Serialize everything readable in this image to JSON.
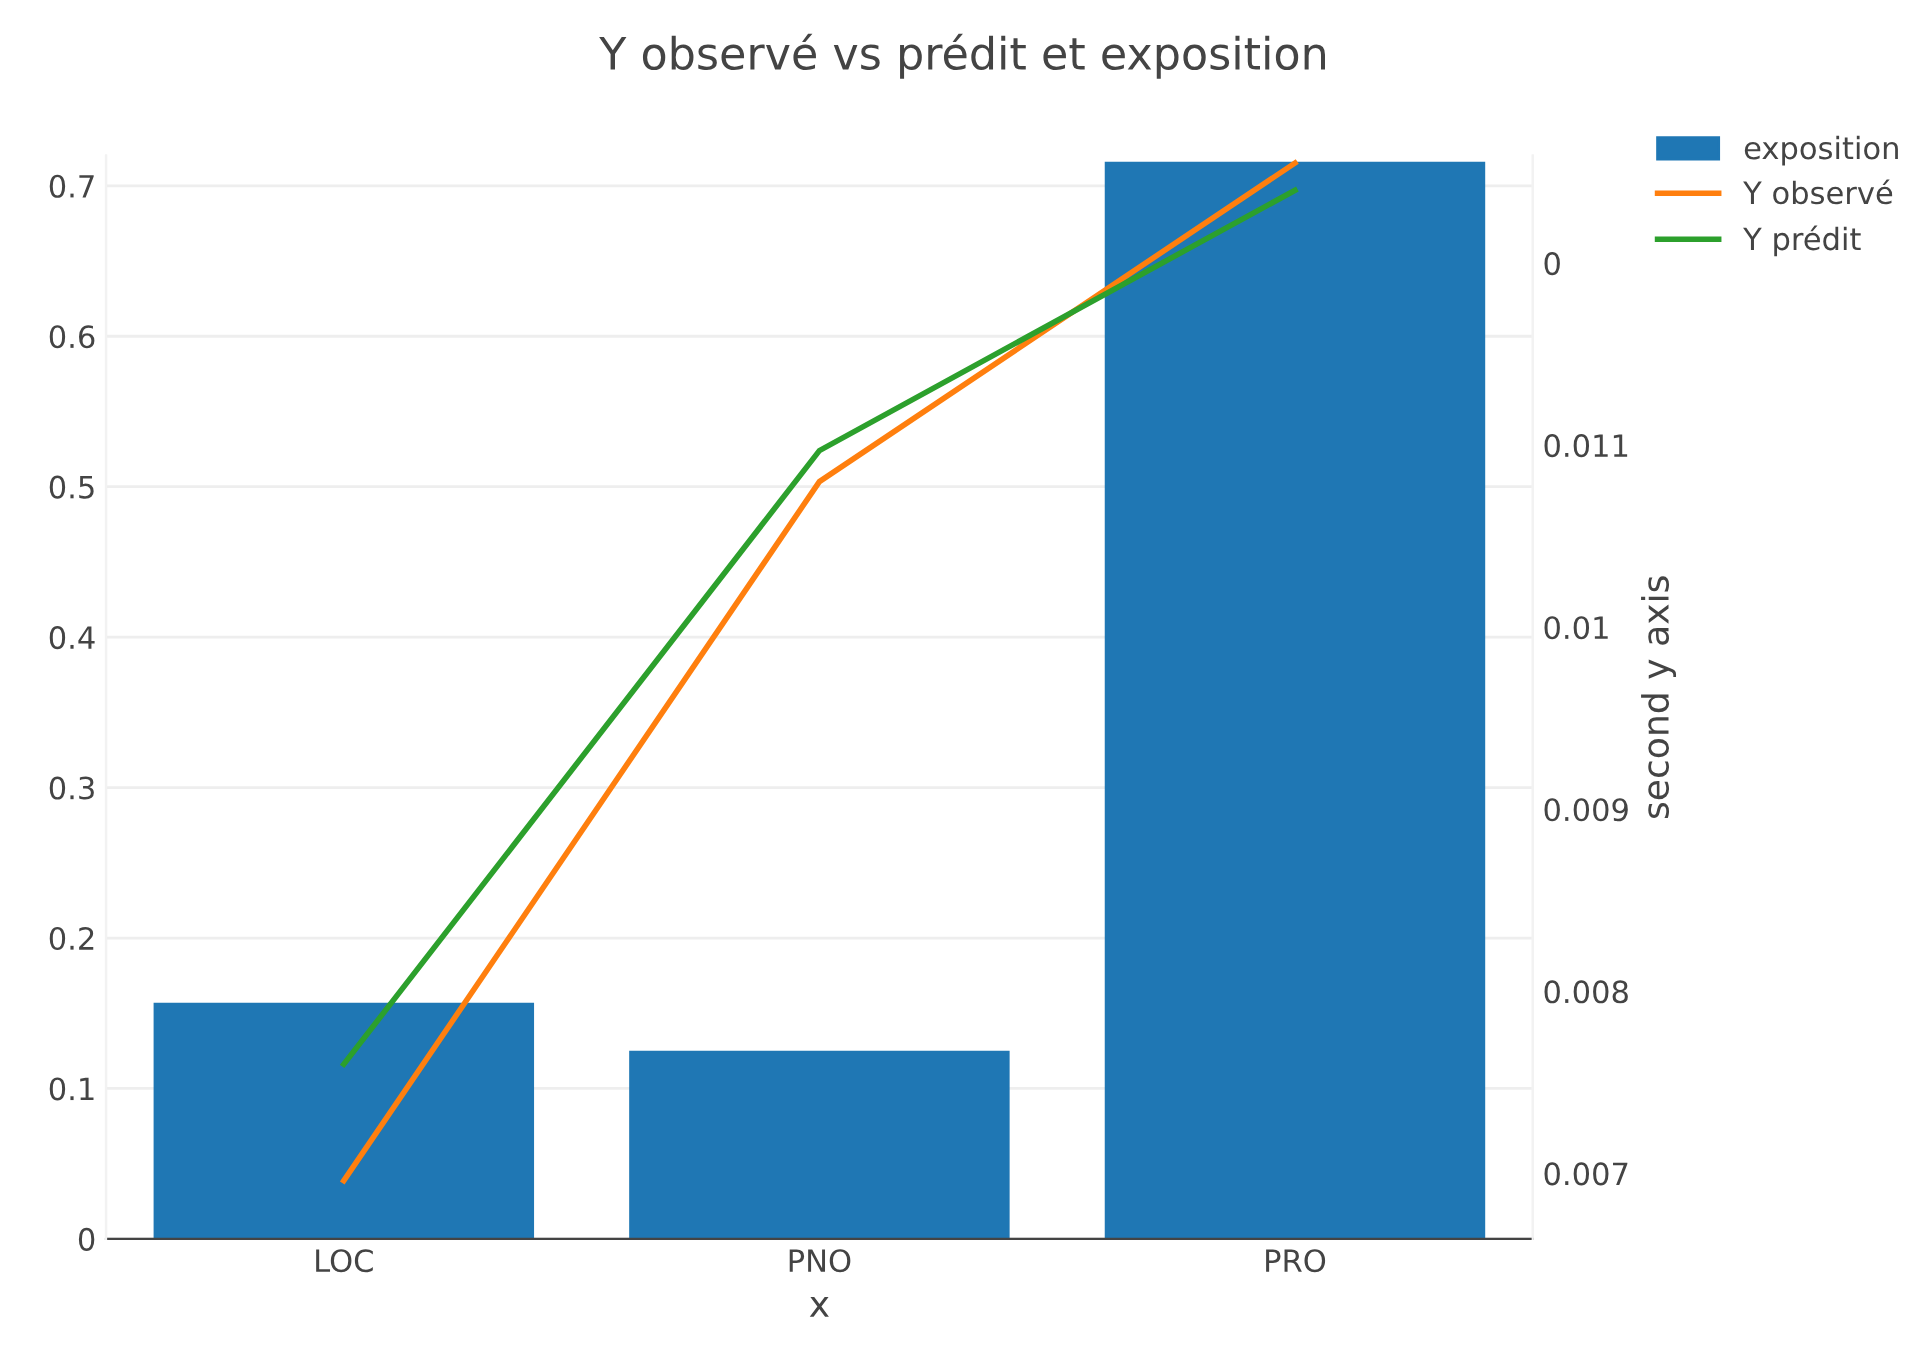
{
  "chart_data": {
    "type": "bar",
    "title": "Y observé vs prédit et exposition",
    "xlabel": "x",
    "y2label": "second y axis",
    "categories": [
      "LOC",
      "PNO",
      "PRO"
    ],
    "series": [
      {
        "name": "exposition",
        "color": "#1f77b4",
        "values": [
          0.157,
          0.125,
          0.716
        ]
      },
      {
        "name": "Y observé",
        "type": "line",
        "axis": "y2",
        "color": "#ff7f0e",
        "values": [
          0.00696,
          0.0108,
          0.01255
        ]
      },
      {
        "name": "Y prédit",
        "type": "line",
        "axis": "y2",
        "color": "#2ca02c",
        "values": [
          0.0076,
          0.01097,
          0.0124
        ]
      }
    ],
    "ylim": [
      0,
      0.72
    ],
    "yticks": [
      0,
      0.1,
      0.2,
      0.3,
      0.4,
      0.5,
      0.6,
      0.7
    ],
    "y2lim": [
      0.00664,
      0.01259
    ],
    "y2ticks": [
      0.007,
      0.008,
      0.009,
      0.01,
      0.011,
      {
        "value": 0.012,
        "label": "0"
      }
    ],
    "grid": "y",
    "legend": "top right",
    "marker": "none",
    "line_style": "solid"
  }
}
